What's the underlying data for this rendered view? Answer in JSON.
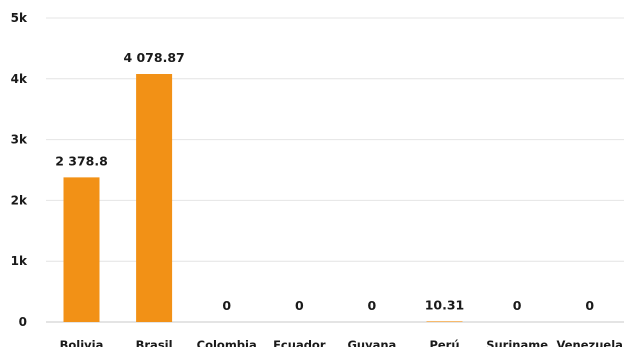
{
  "chart_data": {
    "type": "bar",
    "categories": [
      "Bolivia",
      "Brasil",
      "Colombia",
      "Ecuador",
      "Guyana",
      "Perú",
      "Suriname",
      "Venezuela"
    ],
    "values": [
      2378.8,
      4078.87,
      0,
      0,
      0,
      10.31,
      0,
      0
    ],
    "data_labels": [
      "2 378.8",
      "4 078.87",
      "0",
      "0",
      "0",
      "10.31",
      "0",
      "0"
    ],
    "y_ticks": [
      0,
      1000,
      2000,
      3000,
      4000,
      5000
    ],
    "y_tick_labels": [
      "0",
      "1k",
      "2k",
      "3k",
      "4k",
      "5k"
    ],
    "ylim": [
      0,
      5000
    ],
    "title": "",
    "xlabel": "",
    "ylabel": "",
    "grid": true,
    "legend": "none",
    "colors": {
      "bar": "#F29116",
      "grid": "#e4e4e4",
      "text": "#1a1a1a"
    }
  }
}
